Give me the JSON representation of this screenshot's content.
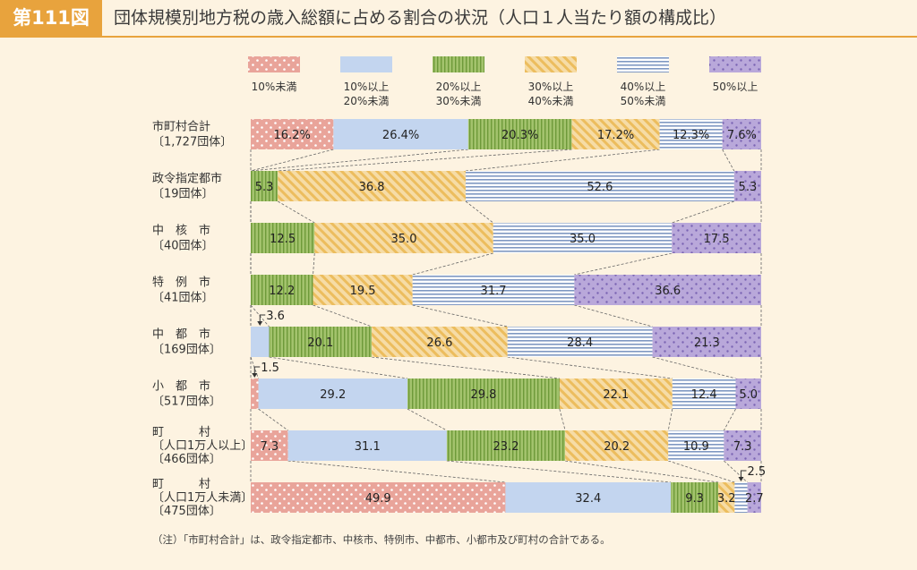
{
  "header": {
    "figure_label": "第111図",
    "title": "団体規模別地方税の歳入総額に占める割合の状況（人口１人当たり額の構成比）"
  },
  "note": "（注）「市町村合計」は、政令指定都市、中核市、特例市、中都市、小都市及び町村の合計である。",
  "colors": {
    "c1": "#e9a49a",
    "c2": "#c3d5ef",
    "c3": "#a3c36d",
    "c4": "#f0c878",
    "c5": "#9fb3d2",
    "c6": "#b9a8da"
  },
  "chart_data": {
    "type": "bar",
    "orientation": "horizontal",
    "stacked": "100%",
    "title": "団体規模別地方税の歳入総額に占める割合の状況（人口１人当たり額の構成比）",
    "legend": [
      "10%未満",
      "10%以上\n20%未満",
      "20%以上\n30%未満",
      "30%以上\n40%未満",
      "40%以上\n50%未満",
      "50%以上"
    ],
    "legend_placement": "top",
    "categories": [
      [
        "市町村合計",
        "〔1,727団体〕"
      ],
      [
        "政令指定都市",
        "〔19団体〕"
      ],
      [
        "中　核　市",
        "〔40団体〕"
      ],
      [
        "特　例　市",
        "〔41団体〕"
      ],
      [
        "中　都　市",
        "〔169団体〕"
      ],
      [
        "小　都　市",
        "〔517団体〕"
      ],
      [
        "町　　　村",
        "〔人口1万人以上〕",
        "〔466団体〕"
      ],
      [
        "町　　　村",
        "〔人口1万人未満〕",
        "〔475団体〕"
      ]
    ],
    "rows": [
      [
        16.2,
        26.4,
        20.3,
        17.2,
        12.3,
        7.6
      ],
      [
        0,
        0,
        5.3,
        36.8,
        52.6,
        5.3
      ],
      [
        0,
        0,
        12.5,
        35.0,
        35.0,
        17.5
      ],
      [
        0,
        0,
        12.2,
        19.5,
        31.7,
        36.6
      ],
      [
        0,
        3.6,
        20.1,
        26.6,
        28.4,
        21.3
      ],
      [
        1.5,
        29.2,
        29.8,
        22.1,
        12.4,
        5.0
      ],
      [
        7.3,
        31.1,
        23.2,
        20.2,
        10.9,
        7.3
      ],
      [
        49.9,
        32.4,
        9.3,
        3.2,
        2.5,
        2.7
      ]
    ],
    "labels": [
      [
        "16.2%",
        "26.4%",
        "20.3%",
        "17.2%",
        "12.3%",
        "7.6%"
      ],
      [
        "",
        "",
        "5.3",
        "36.8",
        "52.6",
        "5.3"
      ],
      [
        "",
        "",
        "12.5",
        "35.0",
        "35.0",
        "17.5"
      ],
      [
        "",
        "",
        "12.2",
        "19.5",
        "31.7",
        "36.6"
      ],
      [
        "",
        "3.6",
        "20.1",
        "26.6",
        "28.4",
        "21.3"
      ],
      [
        "1.5",
        "29.2",
        "29.8",
        "22.1",
        "12.4",
        "5.0"
      ],
      [
        "7.3",
        "31.1",
        "23.2",
        "20.2",
        "10.9",
        "7.3"
      ],
      [
        "49.9",
        "32.4",
        "9.3",
        "3.2",
        "2.5",
        "2.7"
      ]
    ],
    "callouts": [
      {
        "row": 4,
        "segment": 1
      },
      {
        "row": 5,
        "segment": 0
      },
      {
        "row": 7,
        "segment": 4
      }
    ]
  }
}
